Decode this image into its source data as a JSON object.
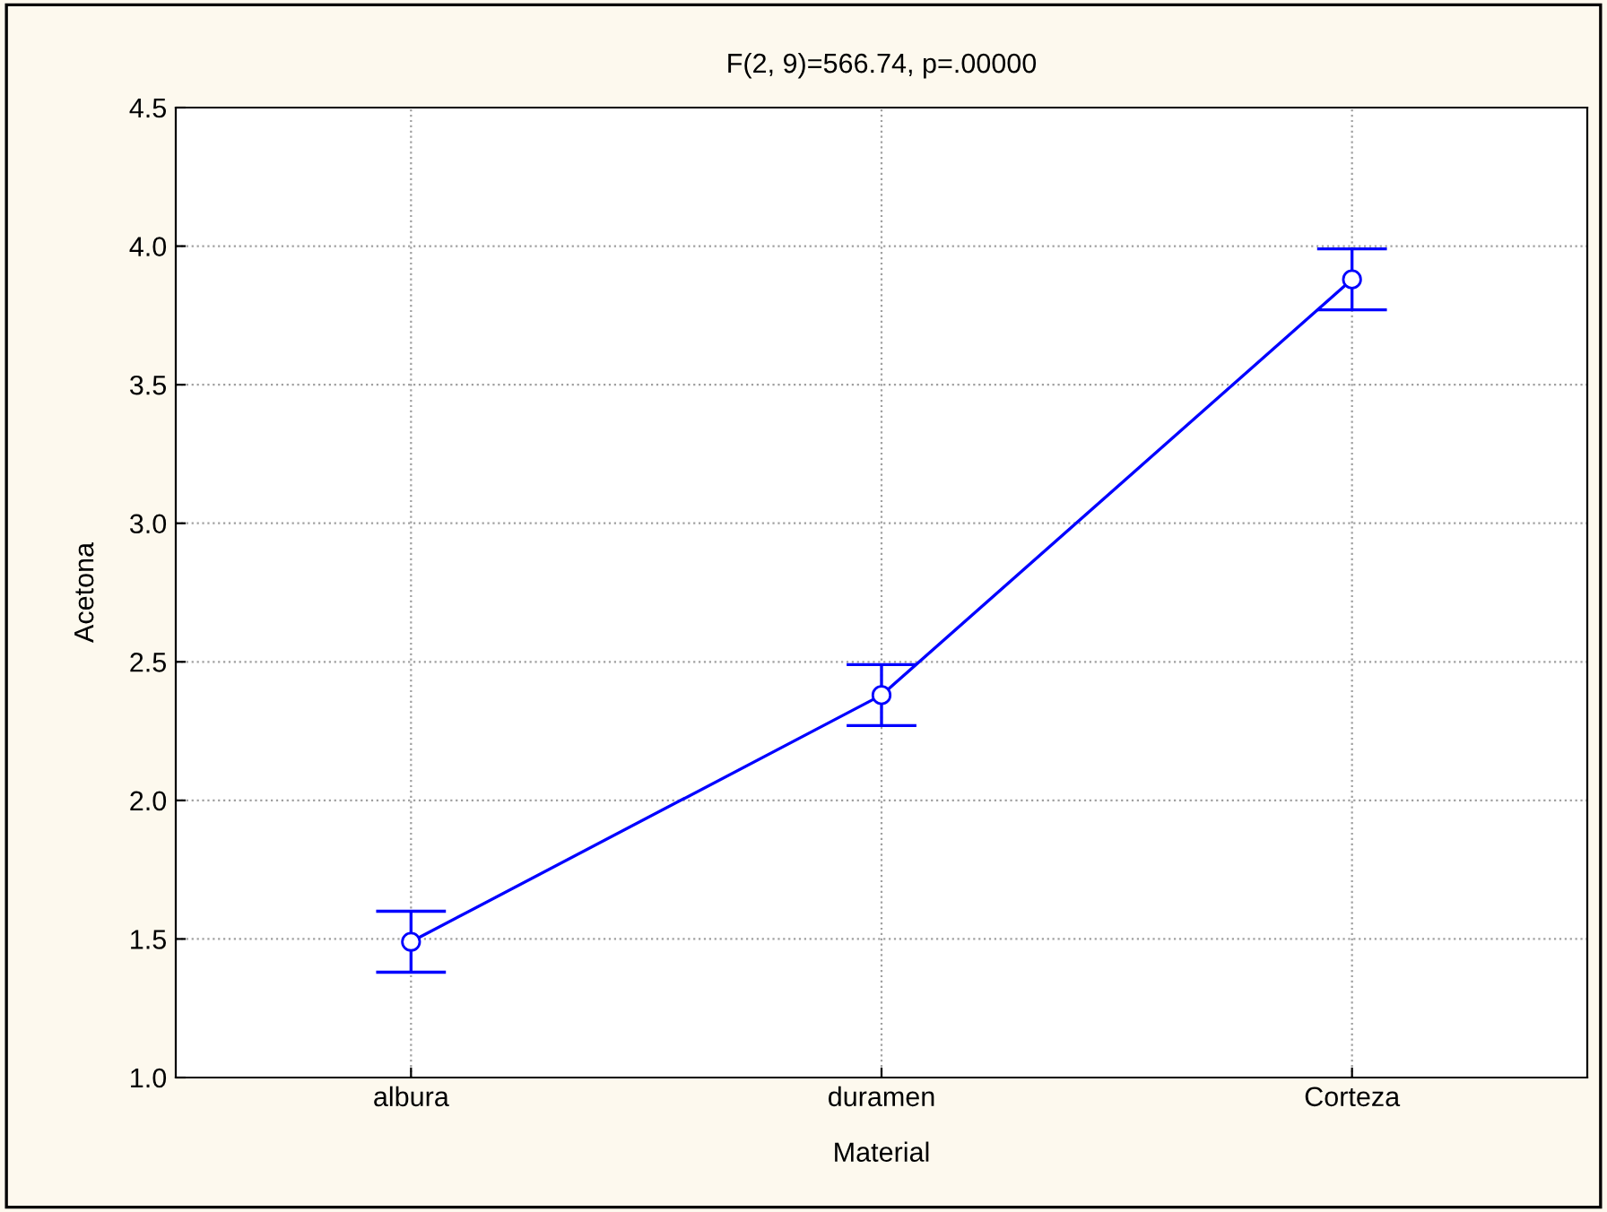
{
  "chart_data": {
    "type": "line",
    "title": "F(2, 9)=566.74, p=.00000",
    "xlabel": "Material",
    "ylabel": "Acetona",
    "categories": [
      "albura",
      "duramen",
      "Corteza"
    ],
    "series": [
      {
        "color": "#0000ff",
        "values": [
          1.49,
          2.38,
          3.88
        ],
        "errors": [
          0.11,
          0.11,
          0.11
        ]
      }
    ],
    "ylim": [
      1.0,
      4.5
    ],
    "yticks": [
      {
        "value": 1.0,
        "label": "1.0"
      },
      {
        "value": 1.5,
        "label": "1.5"
      },
      {
        "value": 2.0,
        "label": "2.0"
      },
      {
        "value": 2.5,
        "label": "2.5"
      },
      {
        "value": 3.0,
        "label": "3.0"
      },
      {
        "value": 3.5,
        "label": "3.5"
      },
      {
        "value": 4.0,
        "label": "4.0"
      },
      {
        "value": 4.5,
        "label": "4.5"
      }
    ],
    "grid": true,
    "marker": "circle",
    "line_style": "solid"
  }
}
